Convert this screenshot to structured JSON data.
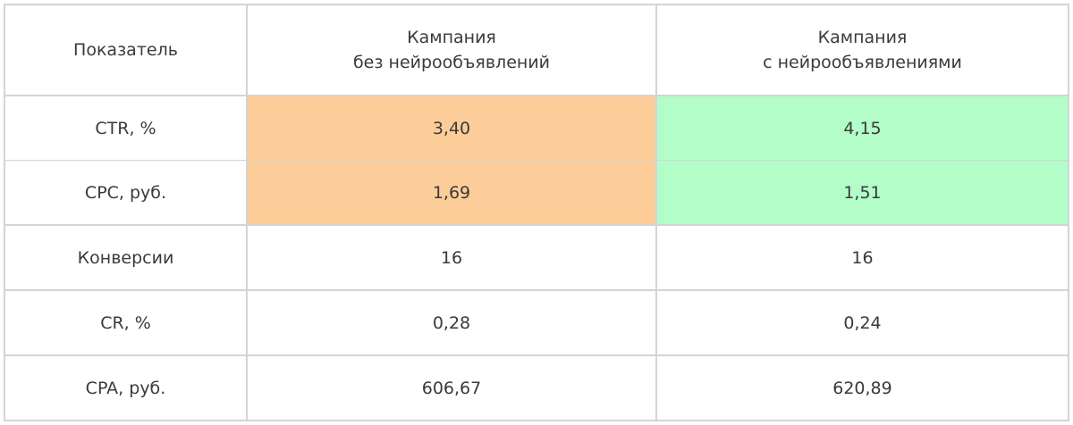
{
  "header": {
    "col0": "Показатель",
    "col1_line1": "Кампания",
    "col1_line2": "без нейрообъявлений",
    "col2_line1": "Кампания",
    "col2_line2": "с нейрообъявлениями"
  },
  "highlight_colors": {
    "without": "#fdcd99",
    "with": "#b3fdc9"
  },
  "rows": [
    {
      "metric": "CTR, %",
      "without": "3,40",
      "with": "4,15"
    },
    {
      "metric": "CPC, руб.",
      "without": "1,69",
      "with": "1,51"
    },
    {
      "metric": "Конверсии",
      "without": "16",
      "with": "16"
    },
    {
      "metric": "CR, %",
      "without": "0,28",
      "with": "0,24"
    },
    {
      "metric": "CPA, руб.",
      "without": "606,67",
      "with": "620,89"
    }
  ]
}
